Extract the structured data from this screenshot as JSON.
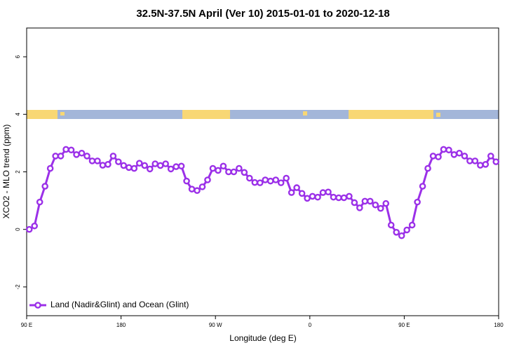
{
  "chart_data": {
    "type": "line",
    "title": "32.5N-37.5N April (Ver 10)   2015-01-01 to 2020-12-18",
    "x_label": "Longitude (deg E)",
    "y_label": "XCO2 - MLO trend (ppm)",
    "xlim": [
      90,
      540
    ],
    "ylim": [
      -3,
      7
    ],
    "xticks": [
      {
        "value": 90,
        "label": "90 E"
      },
      180,
      {
        "value": 270,
        "label": "90 W"
      },
      {
        "value": 360,
        "label": "0"
      },
      {
        "value": 450,
        "label": "90 E"
      },
      {
        "value": 540,
        "label": "180"
      }
    ],
    "yticks": [
      -2,
      0,
      2,
      4,
      6
    ],
    "legend": "bottom-left",
    "x": [
      92.5,
      97.5,
      102.5,
      107.5,
      112.5,
      117.5,
      122.5,
      127.5,
      132.5,
      137.5,
      142.5,
      147.5,
      152.5,
      157.5,
      162.5,
      167.5,
      172.5,
      177.5,
      182.5,
      187.5,
      192.5,
      197.5,
      202.5,
      207.5,
      212.5,
      217.5,
      222.5,
      227.5,
      232.5,
      237.5,
      242.5,
      247.5,
      252.5,
      257.5,
      262.5,
      267.5,
      272.5,
      277.5,
      282.5,
      287.5,
      292.5,
      297.5,
      302.5,
      307.5,
      312.5,
      317.5,
      322.5,
      327.5,
      332.5,
      337.5,
      342.5,
      347.5,
      352.5,
      357.5,
      362.5,
      367.5,
      372.5,
      377.5,
      382.5,
      387.5,
      392.5,
      397.5,
      402.5,
      407.5,
      412.5,
      417.5,
      422.5,
      427.5,
      432.5,
      437.5,
      442.5,
      447.5,
      452.5,
      457.5,
      462.5,
      467.5,
      472.5,
      477.5,
      482.5,
      487.5,
      492.5,
      497.5,
      502.5,
      507.5,
      512.5,
      517.5,
      522.5,
      527.5,
      532.5,
      537.5
    ],
    "series": [
      {
        "name": "Land (Nadir&Glint) and Ocean (Glint)",
        "color": "#9b30e8",
        "values": [
          0,
          0.12,
          0.95,
          1.5,
          2.12,
          2.55,
          2.55,
          2.78,
          2.76,
          2.6,
          2.65,
          2.55,
          2.38,
          2.38,
          2.23,
          2.26,
          2.55,
          2.35,
          2.22,
          2.15,
          2.12,
          2.3,
          2.22,
          2.1,
          2.28,
          2.22,
          2.28,
          2.1,
          2.18,
          2.2,
          1.68,
          1.4,
          1.35,
          1.48,
          1.72,
          2.12,
          2.05,
          2.2,
          2.0,
          2.0,
          2.12,
          1.98,
          1.78,
          1.63,
          1.62,
          1.72,
          1.68,
          1.72,
          1.62,
          1.78,
          1.28,
          1.45,
          1.25,
          1.08,
          1.15,
          1.12,
          1.28,
          1.3,
          1.12,
          1.1,
          1.1,
          1.15,
          0.93,
          0.75,
          0.98,
          0.98,
          0.85,
          0.73,
          0.9,
          0.15,
          -0.1,
          -0.22,
          -0.02,
          0.15,
          0.95,
          1.5,
          2.12,
          2.55,
          2.52,
          2.78,
          2.76,
          2.6,
          2.65,
          2.55,
          2.38,
          2.38,
          2.23,
          2.26,
          2.55,
          2.35
        ]
      }
    ]
  }
}
